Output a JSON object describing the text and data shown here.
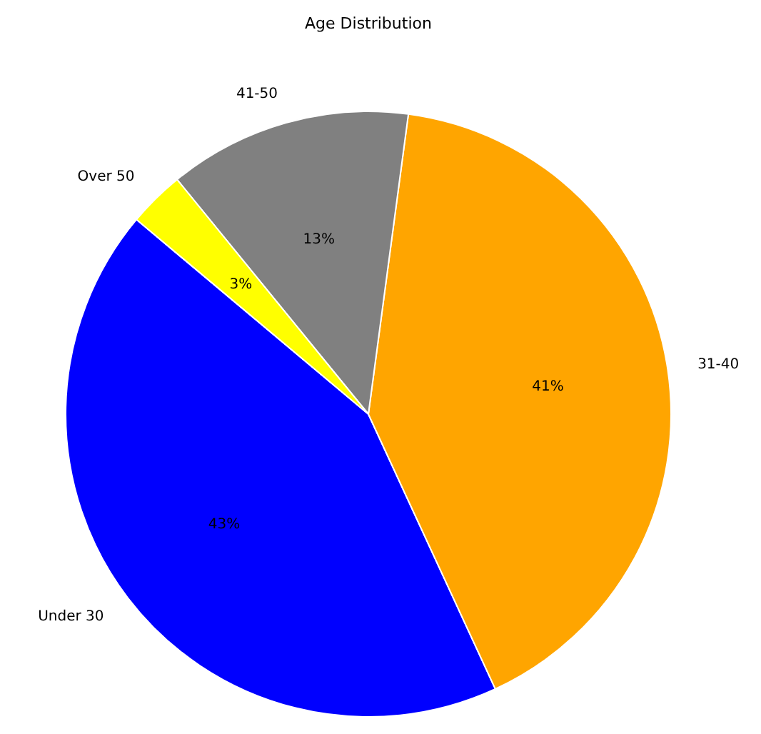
{
  "chart_data": {
    "type": "pie",
    "title": "Age Distribution",
    "categories": [
      "Under 30",
      "31-40",
      "41-50",
      "Over 50"
    ],
    "values": [
      43,
      41,
      13,
      3
    ],
    "colors": [
      "#0000ff",
      "#ffa500",
      "#808080",
      "#ffff00"
    ],
    "value_labels": [
      "43%",
      "41%",
      "13%",
      "3%"
    ]
  }
}
